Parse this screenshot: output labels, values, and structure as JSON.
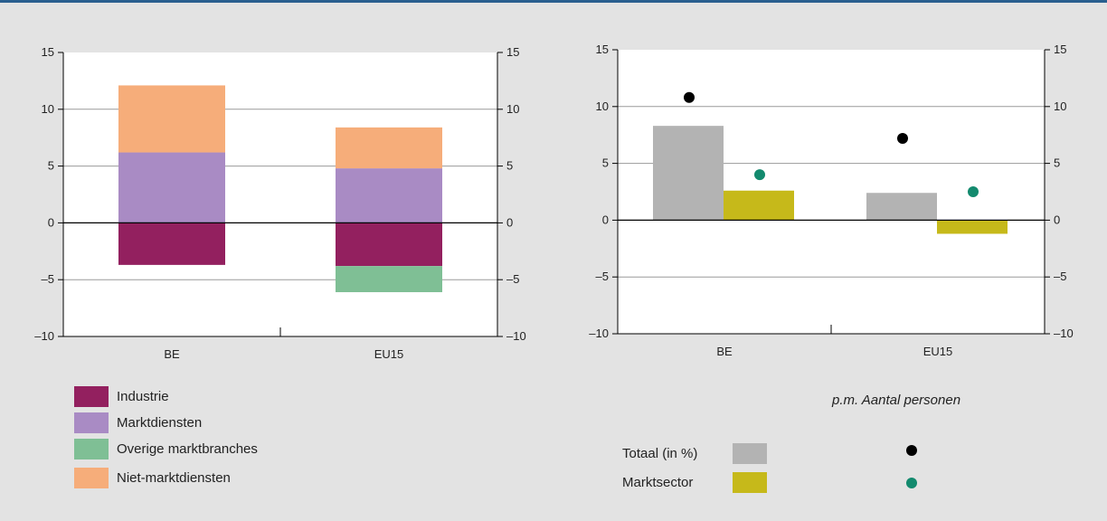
{
  "colors": {
    "industrie": "#93205f",
    "marktdiensten": "#a98bc4",
    "overige": "#7fbf95",
    "niet_markt": "#f6ad7a",
    "totaal_bar": "#b3b3b3",
    "marktsector_bar": "#c6b91a",
    "totaal_dot": "#000000",
    "marktsector_dot": "#138a6e"
  },
  "chart_data": [
    {
      "type": "bar",
      "stacked": true,
      "categories": [
        "BE",
        "EU15"
      ],
      "ylim": [
        -10,
        15
      ],
      "yticks": [
        15,
        10,
        5,
        0,
        -5,
        -10
      ],
      "ytick_labels": [
        "15",
        "10",
        "5",
        "0",
        "–5",
        "–10"
      ],
      "grid": true,
      "series": [
        {
          "name": "Industrie",
          "values": [
            -3.7,
            -3.8
          ]
        },
        {
          "name": "Marktdiensten",
          "values": [
            6.2,
            4.8
          ]
        },
        {
          "name": "Overige marktbranches",
          "values": [
            0,
            -2.3
          ]
        },
        {
          "name": "Niet-marktdiensten",
          "values": [
            5.9,
            3.6
          ]
        }
      ]
    },
    {
      "type": "bar",
      "categories": [
        "BE",
        "EU15"
      ],
      "ylim": [
        -10,
        15
      ],
      "yticks": [
        15,
        10,
        5,
        0,
        -5,
        -10
      ],
      "ytick_labels": [
        "15",
        "10",
        "5",
        "0",
        "–5",
        "–10"
      ],
      "grid": true,
      "series": [
        {
          "name": "Totaal (in %)",
          "values": [
            8.3,
            2.4
          ],
          "marker": "bar"
        },
        {
          "name": "Marktsector",
          "values": [
            2.6,
            -1.2
          ],
          "marker": "bar"
        },
        {
          "name": "Totaal (in %)",
          "values": [
            10.8,
            7.2
          ],
          "marker": "dot"
        },
        {
          "name": "Marktsector",
          "values": [
            4.0,
            2.5
          ],
          "marker": "dot"
        }
      ],
      "dots_legend_title": "p.m. Aantal personen"
    }
  ],
  "legend_left": [
    "Industrie",
    "Marktdiensten",
    "Overige marktbranches",
    "Niet-marktdiensten"
  ],
  "legend_right": {
    "title": "p.m. Aantal personen",
    "rows": [
      "Totaal (in %)",
      "Marktsector"
    ]
  }
}
